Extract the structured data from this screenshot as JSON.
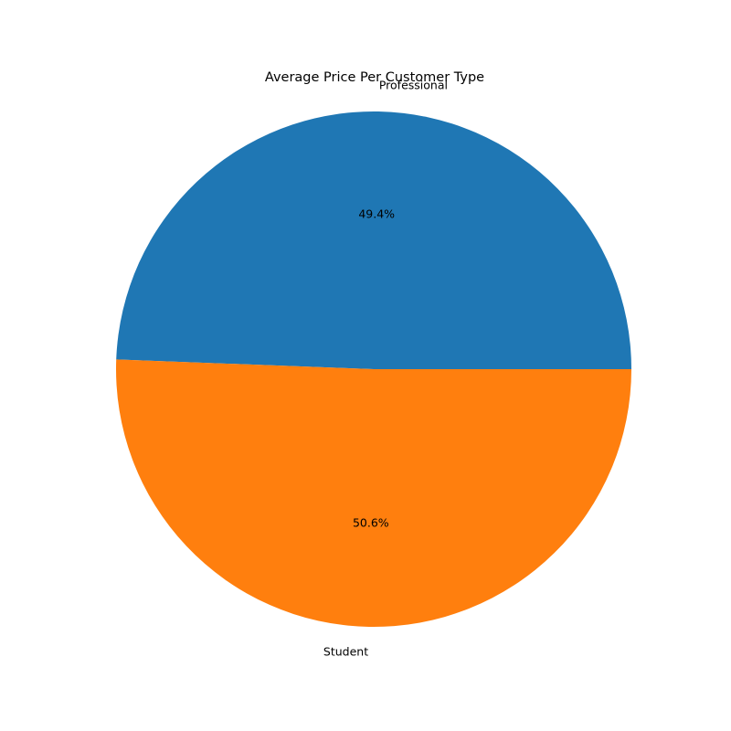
{
  "chart_data": {
    "type": "pie",
    "title": "Average Price Per Customer Type",
    "categories": [
      "Professional",
      "Student"
    ],
    "values": [
      49.4,
      50.6
    ],
    "percent_labels": [
      "49.4%",
      "50.6%"
    ],
    "colors": [
      "#1f77b4",
      "#ff7f0e"
    ],
    "start_angle_deg": 0,
    "direction": "counterclockwise",
    "legend": "none"
  }
}
